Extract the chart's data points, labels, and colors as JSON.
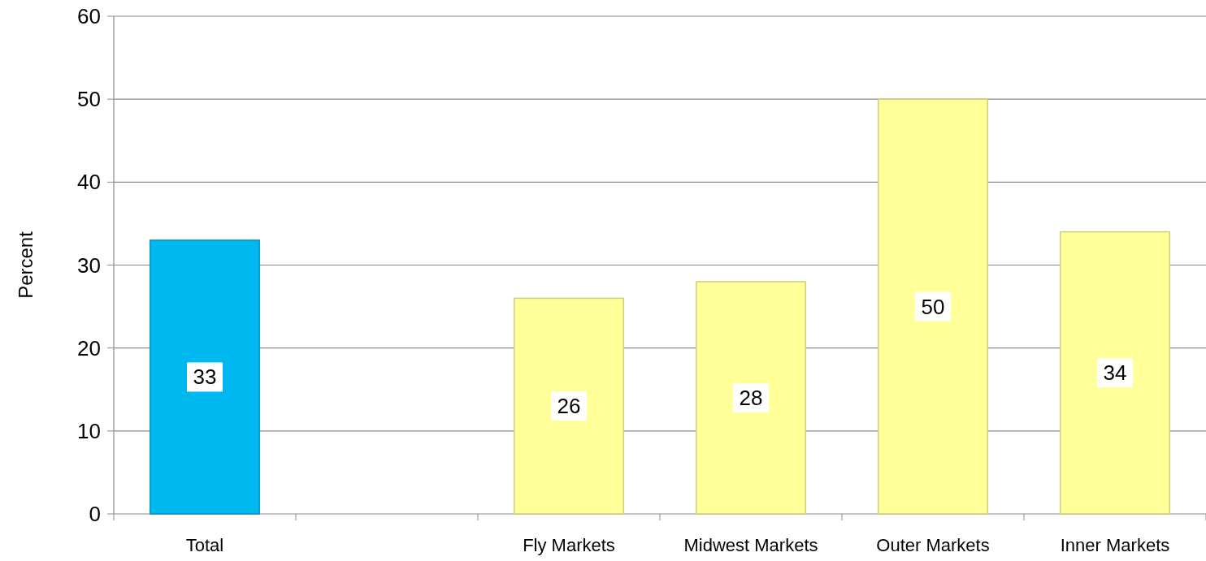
{
  "chart_data": {
    "type": "bar",
    "ylabel": "Percent",
    "categories": [
      "Total",
      null,
      "Fly Markets",
      "Midwest Markets",
      "Outer Markets",
      "Inner Markets"
    ],
    "values": [
      33,
      null,
      26,
      28,
      50,
      34
    ],
    "colors": [
      "#00b8f0",
      null,
      "#ffff99",
      "#ffff99",
      "#ffff99",
      "#ffff99"
    ],
    "ylim": [
      0,
      60
    ],
    "yticks": [
      0,
      10,
      20,
      30,
      40,
      50,
      60
    ],
    "grid": "y",
    "data_labels": true
  }
}
